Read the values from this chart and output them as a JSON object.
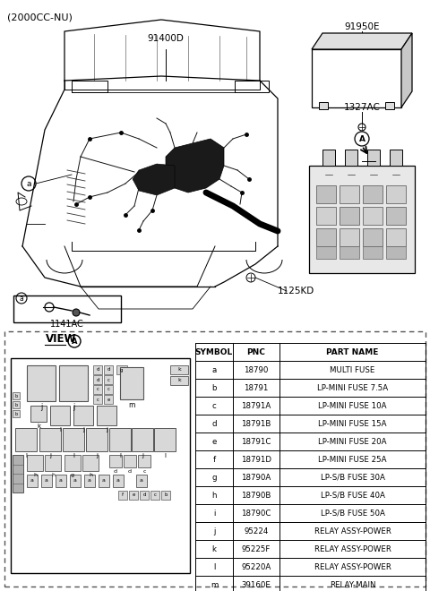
{
  "title_text": "(2000CC-NU)",
  "bg_color": "#ffffff",
  "label_91400D": "91400D",
  "label_91950E": "91950E",
  "label_1327AC": "1327AC",
  "label_1141AC": "1141AC",
  "label_1125KD": "1125KD",
  "label_view": "VIEW",
  "label_A": "A",
  "table_headers": [
    "SYMBOL",
    "PNC",
    "PART NAME"
  ],
  "table_rows": [
    [
      "a",
      "18790",
      "MULTI FUSE"
    ],
    [
      "b",
      "18791",
      "LP-MINI FUSE 7.5A"
    ],
    [
      "c",
      "18791A",
      "LP-MINI FUSE 10A"
    ],
    [
      "d",
      "18791B",
      "LP-MINI FUSE 15A"
    ],
    [
      "e",
      "18791C",
      "LP-MINI FUSE 20A"
    ],
    [
      "f",
      "18791D",
      "LP-MINI FUSE 25A"
    ],
    [
      "g",
      "18790A",
      "LP-S/B FUSE 30A"
    ],
    [
      "h",
      "18790B",
      "LP-S/B FUSE 40A"
    ],
    [
      "i",
      "18790C",
      "LP-S/B FUSE 50A"
    ],
    [
      "j",
      "95224",
      "RELAY ASSY-POWER"
    ],
    [
      "k",
      "95225F",
      "RELAY ASSY-POWER"
    ],
    [
      "l",
      "95220A",
      "RELAY ASSY-POWER"
    ],
    [
      "m",
      "39160E",
      "RELAY-MAIN"
    ]
  ],
  "lc": "#000000",
  "tc": "#000000",
  "gray_light": "#d8d8d8",
  "gray_mid": "#b0b0b0",
  "gray_dark": "#888888"
}
